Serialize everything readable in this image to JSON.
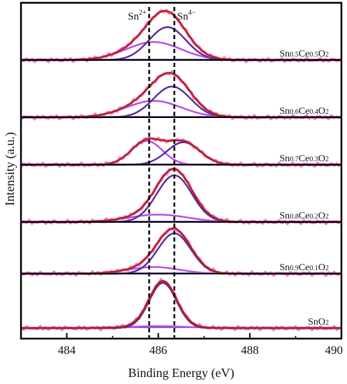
{
  "chart_data": {
    "type": "line",
    "title": "",
    "xlabel": "Binding Energy (eV)",
    "ylabel": "Intensity (a.u.)",
    "xlim": [
      483,
      490
    ],
    "x_ticks": [
      484,
      486,
      488,
      490
    ],
    "x_tick_labels": [
      "484",
      "486",
      "488",
      "490"
    ],
    "reference_lines": [
      {
        "label": "Sn",
        "superscript": "2+",
        "x": 485.8
      },
      {
        "label": "Sn",
        "superscript": "4−",
        "x": 486.35
      }
    ],
    "panels": [
      {
        "label": [
          "Sn",
          "0.5",
          "Ce",
          "0.5",
          "O",
          "2"
        ],
        "peaks": [
          {
            "center": 486.2,
            "height": 0.62,
            "width": 0.95
          },
          {
            "center": 485.9,
            "height": 0.34,
            "width": 1.4
          }
        ]
      },
      {
        "label": [
          "Sn",
          "0.6",
          "Ce",
          "0.4",
          "O",
          "2"
        ],
        "peaks": [
          {
            "center": 486.3,
            "height": 0.58,
            "width": 0.95
          },
          {
            "center": 485.9,
            "height": 0.31,
            "width": 1.4
          }
        ]
      },
      {
        "label": [
          "Sn",
          "0.7",
          "Ce",
          "0.3",
          "O",
          "2"
        ],
        "peaks": [
          {
            "center": 486.55,
            "height": 0.52,
            "width": 0.85
          },
          {
            "center": 485.75,
            "height": 0.55,
            "width": 0.8
          }
        ]
      },
      {
        "label": [
          "Sn",
          "0.8",
          "Ce",
          "0.2",
          "O",
          "2"
        ],
        "peaks": [
          {
            "center": 486.35,
            "height": 0.88,
            "width": 0.9
          },
          {
            "center": 486.0,
            "height": 0.14,
            "width": 1.5
          }
        ]
      },
      {
        "label": [
          "Sn",
          "0.9",
          "Ce",
          "0.1",
          "O",
          "2"
        ],
        "peaks": [
          {
            "center": 486.35,
            "height": 0.85,
            "width": 0.85
          },
          {
            "center": 485.9,
            "height": 0.14,
            "width": 1.3
          }
        ]
      },
      {
        "label": [
          "SnO",
          "",
          "",
          "",
          "",
          "2"
        ],
        "peaks": [
          {
            "center": 486.1,
            "height": 0.9,
            "width": 0.7
          },
          {
            "center": 486.0,
            "height": 0.04,
            "width": 1.5
          }
        ]
      }
    ],
    "colors": {
      "raw": "#f06ab8",
      "envelope": "#b22323",
      "component_sn4": "#5a2a9c",
      "component_sn2": "#b84be6",
      "baseline": "#6a3cbf"
    }
  }
}
